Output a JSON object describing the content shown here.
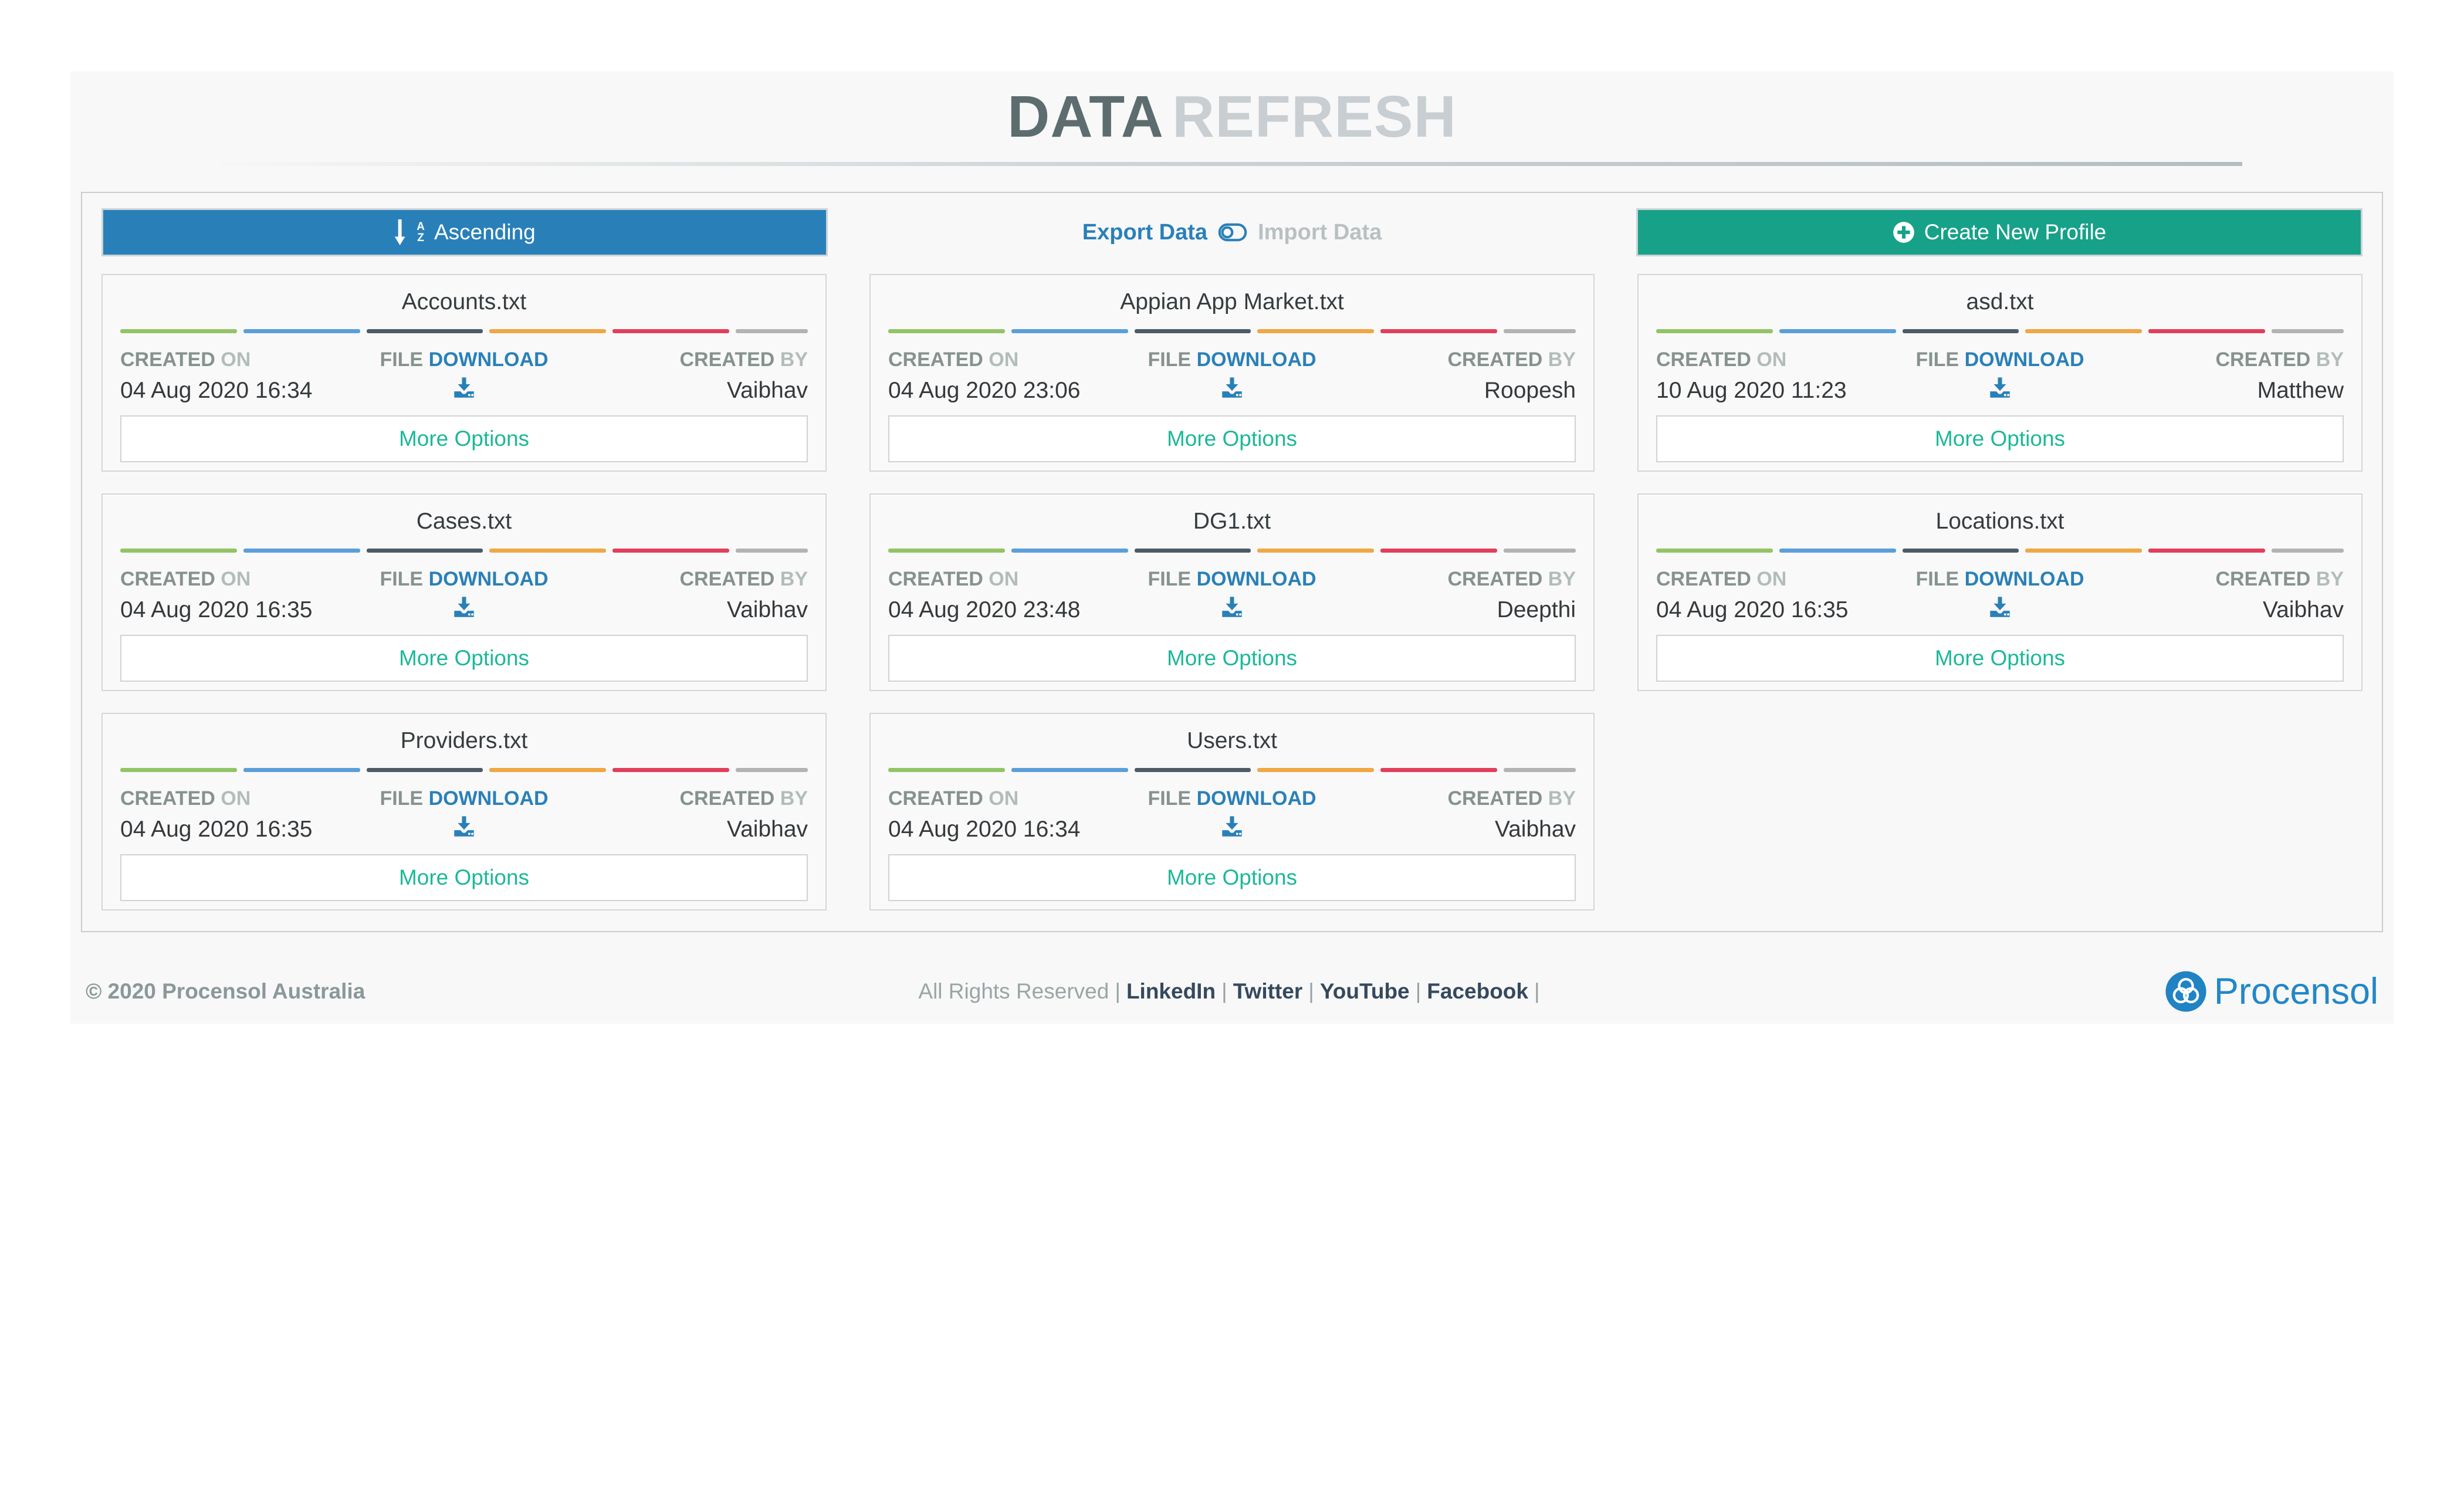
{
  "header": {
    "title_primary": "DATA",
    "title_secondary": "REFRESH"
  },
  "toolbar": {
    "sort_label": "Ascending",
    "export_label": "Export Data",
    "import_label": "Import Data",
    "create_label": "Create New Profile",
    "sort_icon_letters": {
      "top": "A",
      "bottom": "Z"
    }
  },
  "card_labels": {
    "created": "CREATED",
    "on": "ON",
    "by": "BY",
    "file": "FILE",
    "download": "DOWNLOAD",
    "more_options": "More Options"
  },
  "cards": [
    {
      "filename": "Accounts.txt",
      "created_on": "04 Aug 2020 16:34",
      "created_by": "Vaibhav"
    },
    {
      "filename": "Appian App Market.txt",
      "created_on": "04 Aug 2020 23:06",
      "created_by": "Roopesh"
    },
    {
      "filename": "asd.txt",
      "created_on": "10 Aug 2020 11:23",
      "created_by": "Matthew"
    },
    {
      "filename": "Cases.txt",
      "created_on": "04 Aug 2020 16:35",
      "created_by": "Vaibhav"
    },
    {
      "filename": "DG1.txt",
      "created_on": "04 Aug 2020 23:48",
      "created_by": "Deepthi"
    },
    {
      "filename": "Locations.txt",
      "created_on": "04 Aug 2020 16:35",
      "created_by": "Vaibhav"
    },
    {
      "filename": "Providers.txt",
      "created_on": "04 Aug 2020 16:35",
      "created_by": "Vaibhav"
    },
    {
      "filename": "Users.txt",
      "created_on": "04 Aug 2020 16:34",
      "created_by": "Vaibhav"
    }
  ],
  "divider_colors": [
    "#92c465",
    "#5b9fd8",
    "#4e5b66",
    "#efa843",
    "#e23f5b",
    "#b3b3b3"
  ],
  "footer": {
    "copyright": "© 2020 Procensol Australia",
    "rights": "All Rights Reserved",
    "separator": "|",
    "links": [
      "LinkedIn",
      "Twitter",
      "YouTube",
      "Facebook"
    ],
    "brand": "Procensol"
  },
  "colors": {
    "primary_blue": "#2980b9",
    "create_green": "#17a189",
    "more_options_teal": "#1cb898",
    "footer_link_dark": "#34495e",
    "brand_blue": "#2287c8",
    "title_dark": "#5d6c6e",
    "title_light": "#c8ced1",
    "panel_bg": "#f8f8f8"
  }
}
